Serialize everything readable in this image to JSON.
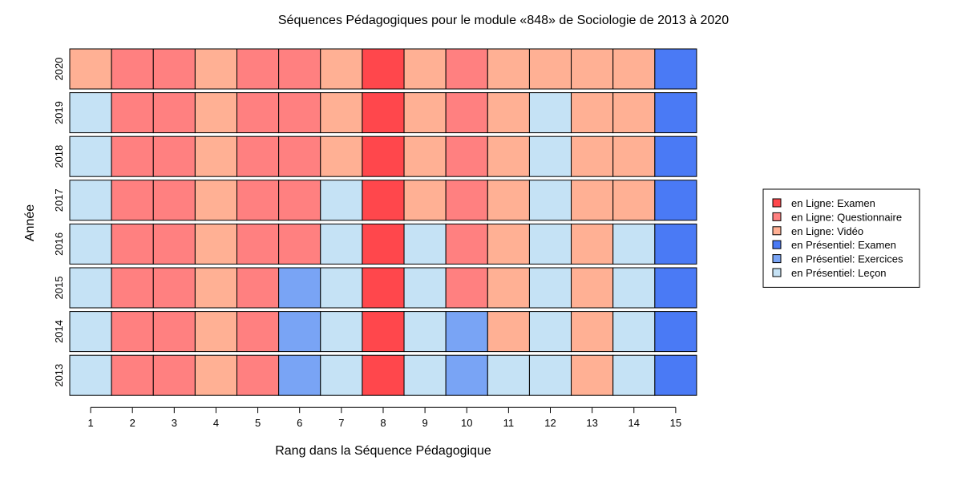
{
  "chart_data": {
    "type": "heatmap",
    "title": "Séquences Pédagogiques pour le module «848» de Sociologie de 2013 à 2020",
    "xlabel": "Rang dans la Séquence Pédagogique",
    "ylabel": "Année",
    "x": [
      "1",
      "2",
      "3",
      "4",
      "5",
      "6",
      "7",
      "8",
      "9",
      "10",
      "11",
      "12",
      "13",
      "14",
      "15"
    ],
    "y": [
      "2020",
      "2019",
      "2018",
      "2017",
      "2016",
      "2015",
      "2014",
      "2013"
    ],
    "categories": [
      {
        "key": "LE",
        "label": "en Ligne: Examen",
        "color": "#ff474c"
      },
      {
        "key": "LQ",
        "label": "en Ligne: Questionnaire",
        "color": "#ff8080"
      },
      {
        "key": "LV",
        "label": "en Ligne: Vidéo",
        "color": "#ffb094"
      },
      {
        "key": "PE",
        "label": "en Présentiel: Examen",
        "color": "#4a7af5"
      },
      {
        "key": "PX",
        "label": "en Présentiel: Exercices",
        "color": "#79a4f5"
      },
      {
        "key": "PL",
        "label": "en Présentiel: Leçon",
        "color": "#c5e2f5"
      }
    ],
    "rows": [
      {
        "year": "2020",
        "cells": [
          "LV",
          "LQ",
          "LQ",
          "LV",
          "LQ",
          "LQ",
          "LV",
          "LE",
          "LV",
          "LQ",
          "LV",
          "LV",
          "LV",
          "LV",
          "PE"
        ]
      },
      {
        "year": "2019",
        "cells": [
          "PL",
          "LQ",
          "LQ",
          "LV",
          "LQ",
          "LQ",
          "LV",
          "LE",
          "LV",
          "LQ",
          "LV",
          "PL",
          "LV",
          "LV",
          "PE"
        ]
      },
      {
        "year": "2018",
        "cells": [
          "PL",
          "LQ",
          "LQ",
          "LV",
          "LQ",
          "LQ",
          "LV",
          "LE",
          "LV",
          "LQ",
          "LV",
          "PL",
          "LV",
          "LV",
          "PE"
        ]
      },
      {
        "year": "2017",
        "cells": [
          "PL",
          "LQ",
          "LQ",
          "LV",
          "LQ",
          "LQ",
          "PL",
          "LE",
          "LV",
          "LQ",
          "LV",
          "PL",
          "LV",
          "LV",
          "PE"
        ]
      },
      {
        "year": "2016",
        "cells": [
          "PL",
          "LQ",
          "LQ",
          "LV",
          "LQ",
          "LQ",
          "PL",
          "LE",
          "PL",
          "LQ",
          "LV",
          "PL",
          "LV",
          "PL",
          "PE"
        ]
      },
      {
        "year": "2015",
        "cells": [
          "PL",
          "LQ",
          "LQ",
          "LV",
          "LQ",
          "PX",
          "PL",
          "LE",
          "PL",
          "LQ",
          "LV",
          "PL",
          "LV",
          "PL",
          "PE"
        ]
      },
      {
        "year": "2014",
        "cells": [
          "PL",
          "LQ",
          "LQ",
          "LV",
          "LQ",
          "PX",
          "PL",
          "LE",
          "PL",
          "PX",
          "LV",
          "PL",
          "LV",
          "PL",
          "PE"
        ]
      },
      {
        "year": "2013",
        "cells": [
          "PL",
          "LQ",
          "LQ",
          "LV",
          "LQ",
          "PX",
          "PL",
          "LE",
          "PL",
          "PX",
          "PL",
          "PL",
          "LV",
          "PL",
          "PE"
        ]
      }
    ],
    "legend_position": "right",
    "grid": false
  }
}
